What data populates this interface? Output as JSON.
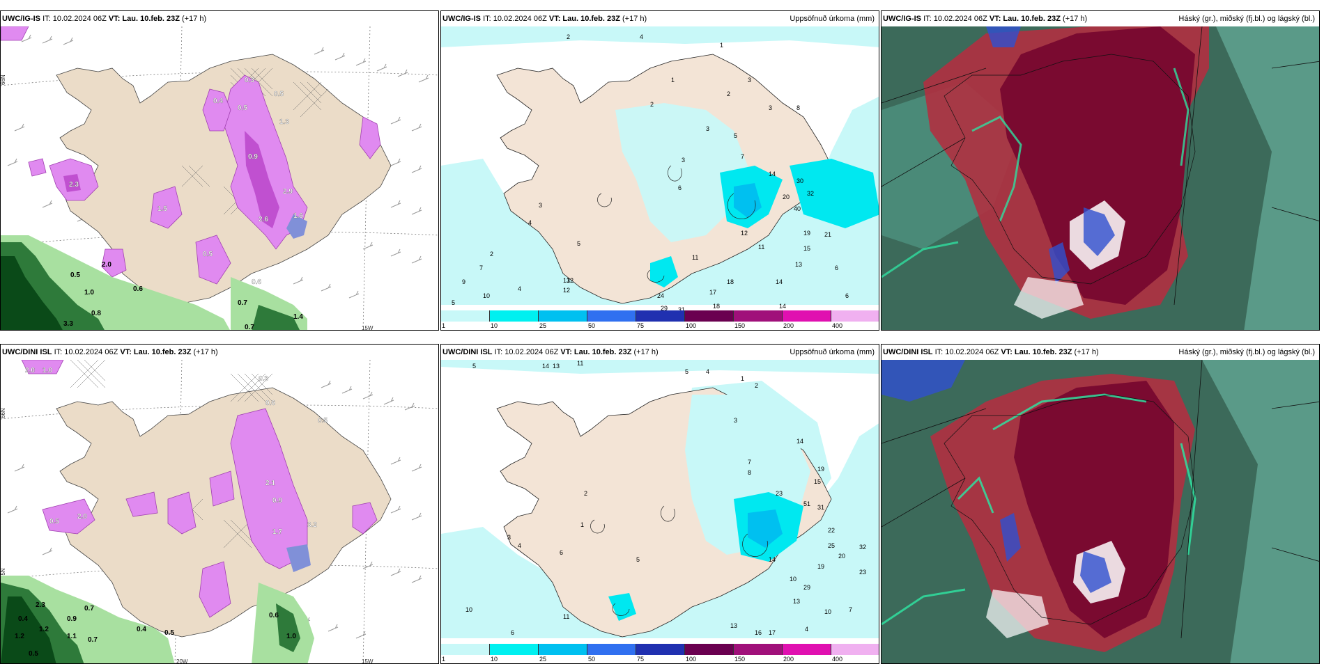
{
  "panels": [
    {
      "id": "p1",
      "model": "UWC/IG-IS",
      "it": "IT: 10.02.2024 06Z",
      "vt_label": "VT:",
      "vt": "Lau. 10.feb. 23Z",
      "lead": "(+17 h)",
      "title_right": ""
    },
    {
      "id": "p2",
      "model": "UWC/IG-IS",
      "it": "IT: 10.02.2024 06Z",
      "vt_label": "VT:",
      "vt": "Lau. 10.feb. 23Z",
      "lead": "(+17 h)",
      "title_right": "Uppsöfnuð úrkoma (mm)"
    },
    {
      "id": "p3",
      "model": "UWC/IG-IS",
      "it": "IT: 10.02.2024 06Z",
      "vt_label": "VT:",
      "vt": "Lau. 10.feb. 23Z",
      "lead": "(+17 h)",
      "title_right": "Háský (gr.), miðský (fj.bl.) og lágský (bl.)"
    },
    {
      "id": "p4",
      "model": "UWC/DINI ISL",
      "it": "IT: 10.02.2024 06Z",
      "vt_label": "VT:",
      "vt": "Lau. 10.feb. 23Z",
      "lead": "(+17 h)",
      "title_right": ""
    },
    {
      "id": "p5",
      "model": "UWC/DINI ISL",
      "it": "IT: 10.02.2024 06Z",
      "vt_label": "VT:",
      "vt": "Lau. 10.feb. 23Z",
      "lead": "(+17 h)",
      "title_right": "Uppsöfnuð úrkoma (mm)"
    },
    {
      "id": "p6",
      "model": "UWC/DINI ISL",
      "it": "IT: 10.02.2024 06Z",
      "vt_label": "VT:",
      "vt": "Lau. 10.feb. 23Z",
      "lead": "(+17 h)",
      "title_right": "Háský (gr.), miðský (fj.bl.) og lágský (bl.)"
    }
  ],
  "grid_labels": {
    "lat_66": "66N",
    "lat_65": "65N",
    "lat_64": "64N",
    "lon_20": "20W",
    "lon_15": "15W"
  },
  "legend": {
    "ticks": [
      "1",
      "10",
      "25",
      "50",
      "75",
      "100",
      "150",
      "200",
      "400"
    ],
    "colors": [
      "#c8f8f8",
      "#00f0f0",
      "#00c0f0",
      "#3070f0",
      "#2030b0",
      "#6a0050",
      "#a0107a",
      "#e010b0",
      "#f0b0f0"
    ]
  },
  "snow_values_top": [
    "0.3",
    "0.5",
    "0.4",
    "0.5",
    "1.3",
    "0.9",
    "2.3",
    "1.5",
    "2.6",
    "2.9",
    "1.6",
    "0.5",
    "0.6",
    "0.7",
    "0.5",
    "1.0",
    "0.8",
    "0.6",
    "2.0",
    "3.3",
    "1.4",
    "0.7"
  ],
  "snow_values_bottom": [
    "2.0",
    "1.0",
    "0.3",
    "0.6",
    "0.5",
    "1.7",
    "2.1",
    "0.9",
    "3.2",
    "0.5",
    "2.0",
    "1.2",
    "0.7",
    "0.9",
    "0.7",
    "1.1",
    "0.5",
    "0.4",
    "0.6",
    "1.0",
    "1.2",
    "0.5",
    "2.3",
    "0.4"
  ],
  "precip_values_top": [
    "2",
    "4",
    "1",
    "3",
    "2",
    "3",
    "8",
    "3",
    "5",
    "7",
    "14",
    "30",
    "20",
    "32",
    "40",
    "19",
    "21",
    "12",
    "11",
    "15",
    "13",
    "6",
    "14",
    "18",
    "17",
    "11",
    "9",
    "10",
    "12",
    "24",
    "29",
    "31",
    "18",
    "14",
    "6",
    "5",
    "4",
    "2",
    "7",
    "3",
    "5",
    "1",
    "2",
    "4",
    "6",
    "3",
    "13",
    "12"
  ],
  "precip_values_bottom": [
    "5",
    "14",
    "13",
    "11",
    "5",
    "4",
    "1",
    "2",
    "3",
    "7",
    "8",
    "14",
    "19",
    "15",
    "23",
    "51",
    "31",
    "22",
    "25",
    "20",
    "32",
    "19",
    "23",
    "29",
    "10",
    "13",
    "10",
    "7",
    "14",
    "4",
    "6",
    "10",
    "11",
    "13",
    "16",
    "17",
    "3",
    "2",
    "5",
    "6",
    "4",
    "1"
  ],
  "colors": {
    "land": "#ebdcc8",
    "pink": "#e08af0",
    "purple": "#b040c0",
    "green_light": "#a8e0a0",
    "green_dark": "#2e7a3a",
    "cyan_light": "#c8f8f8",
    "cyan": "#00e8f0",
    "red_cloud": "#b03040",
    "dark_red": "#7a0a30",
    "teal_dark": "#3c6a5a",
    "teal": "#4a8a78"
  }
}
